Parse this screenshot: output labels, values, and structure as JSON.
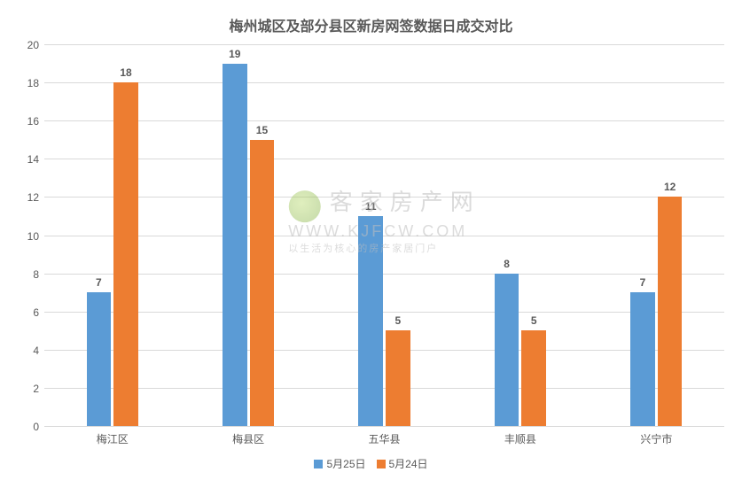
{
  "chart": {
    "type": "bar",
    "title": "梅州城区及部分县区新房网签数据日成交对比",
    "title_fontsize": 16,
    "title_color": "#595959",
    "categories": [
      "梅江区",
      "梅县区",
      "五华县",
      "丰顺县",
      "兴宁市"
    ],
    "series": [
      {
        "name": "5月25日",
        "color": "#5b9bd5",
        "values": [
          7,
          19,
          11,
          8,
          7
        ]
      },
      {
        "name": "5月24日",
        "color": "#ed7d31",
        "values": [
          18,
          15,
          5,
          5,
          12
        ]
      }
    ],
    "ylim": [
      0,
      20
    ],
    "ytick_step": 2,
    "grid_color": "#d9d9d9",
    "axis_color": "#bfbfbf",
    "background_color": "#ffffff",
    "label_fontsize": 12,
    "label_color": "#595959",
    "bar_width_pct": 18,
    "bar_gap_pct": 2,
    "legend_position": "bottom"
  },
  "watermark": {
    "logo_name": "kjfcw-logo-icon",
    "line1": "客家房产网",
    "line2": "WWW.KJFCW.COM",
    "line3": "以生活为核心的房产家居门户",
    "color": "#bfbfbf"
  }
}
